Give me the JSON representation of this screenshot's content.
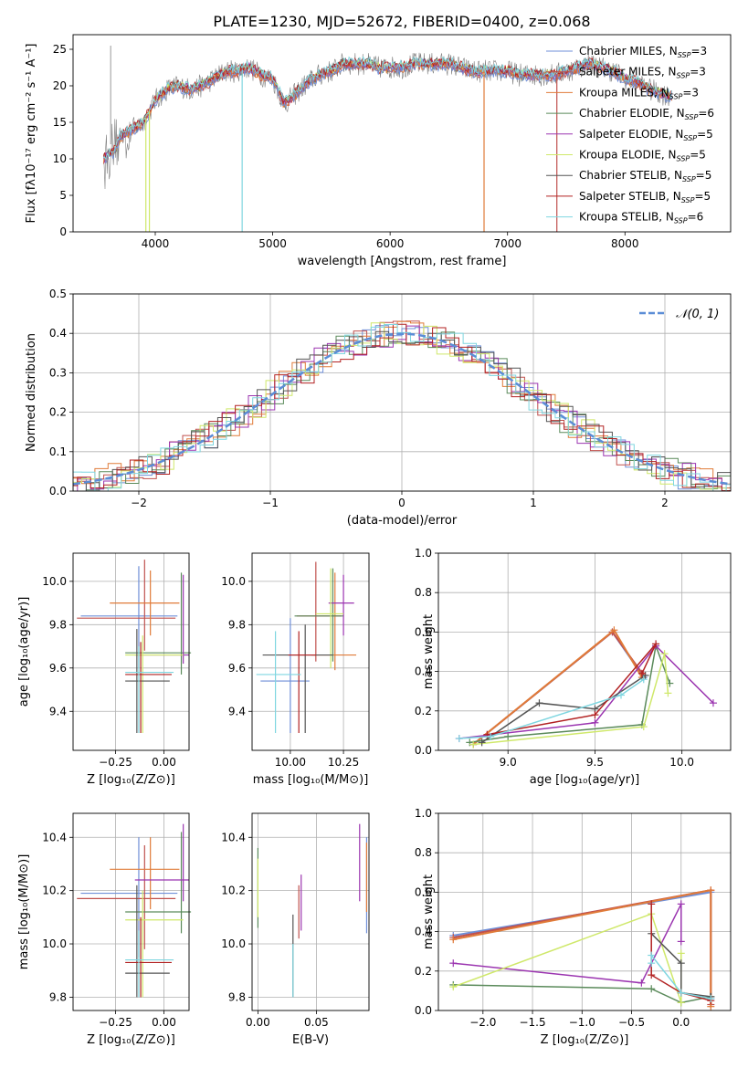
{
  "figure": {
    "title": "PLATE=1230, MJD=52672, FIBERID=0400, z=0.068"
  },
  "series_colors": [
    "#6f8fd8",
    "#c0504d",
    "#e07b39",
    "#5a8a5a",
    "#9b35b0",
    "#cfe86a",
    "#555555",
    "#b22222",
    "#7fd6e0"
  ],
  "chart_data": [
    {
      "id": "spectrum",
      "type": "line",
      "title": "PLATE=1230, MJD=52672, FIBERID=0400, z=0.068",
      "xlabel": "wavelength [Angstrom, rest frame]",
      "ylabel": "Flux [fλ10⁻¹⁷ erg cm⁻² s⁻¹ A⁻¹]",
      "xlim": [
        3300,
        8900
      ],
      "ylim": [
        0,
        27
      ],
      "xticks": [
        4000,
        5000,
        6000,
        7000,
        8000
      ],
      "yticks": [
        0,
        5,
        10,
        15,
        20,
        25
      ],
      "legend_placement": "right",
      "legend": [
        "Chabrier MILES, N_SSP=3",
        "Salpeter MILES, N_SSP=3",
        "Kroupa MILES, N_SSP=3",
        "Chabrier ELODIE, N_SSP=6",
        "Salpeter ELODIE, N_SSP=5",
        "Kroupa ELODIE, N_SSP=5",
        "Chabrier STELIB, N_SSP=5",
        "Salpeter STELIB, N_SSP=5",
        "Kroupa STELIB, N_SSP=6"
      ],
      "continuum_x": [
        3560,
        3650,
        3700,
        3800,
        3900,
        4000,
        4100,
        4200,
        4300,
        4400,
        4500,
        4600,
        4700,
        4800,
        4900,
        5000,
        5100,
        5200,
        5300,
        5400,
        5500,
        5600,
        5700,
        5800,
        5900,
        6000,
        6100,
        6200,
        6300,
        6400,
        6500,
        6600,
        6700,
        6800,
        6900,
        7000,
        7100,
        7200,
        7300,
        7400,
        7500,
        7600,
        7700,
        7800,
        7900,
        8000,
        8100,
        8200,
        8300,
        8400
      ],
      "continuum_y": [
        10,
        11,
        13,
        14,
        15,
        18,
        19.5,
        20,
        19.5,
        20,
        21,
        22,
        22,
        22.5,
        21.5,
        21,
        17.5,
        19,
        20.5,
        21.5,
        22,
        23,
        23,
        23,
        22.5,
        22.5,
        22.5,
        23,
        23,
        23,
        23,
        22.5,
        22,
        22,
        22,
        22,
        21.5,
        21.5,
        21.5,
        21.5,
        22,
        22.5,
        23,
        22.5,
        22,
        21,
        20.5,
        19.5,
        19,
        18.5
      ]
    },
    {
      "id": "residuals",
      "type": "area",
      "xlabel": "(data-model)/error",
      "ylabel": "Normed distribution",
      "xlim": [
        -2.5,
        2.5
      ],
      "ylim": [
        0,
        0.5
      ],
      "xticks": [
        -2,
        -1,
        0,
        1,
        2
      ],
      "yticks": [
        0.0,
        0.1,
        0.2,
        0.3,
        0.4,
        0.5
      ],
      "legend": [
        "𝒩(0, 1)"
      ],
      "legend_placement": "top-right",
      "grid": true
    },
    {
      "id": "z-age",
      "type": "scatter",
      "xlabel": "Z [log₁₀(Z/Z⊙)]",
      "ylabel": "age  [log₁₀(age/yr)]",
      "xlim": [
        -0.47,
        0.13
      ],
      "ylim": [
        9.22,
        10.13
      ],
      "xticks": [
        -0.25,
        0.0
      ],
      "yticks": [
        9.4,
        9.6,
        9.8,
        10.0
      ],
      "points": [
        {
          "x": -0.4,
          "y": 9.84,
          "ex": [
            -0.42,
            -0.08
          ],
          "ey": [
            9.3,
            10.0
          ]
        },
        {
          "x": -0.25,
          "y": 9.9,
          "ex": [
            -0.3,
            -0.05
          ],
          "ey": [
            9.6,
            10.05
          ]
        },
        {
          "x": -0.1,
          "y": 9.66,
          "ex": [
            -0.2,
            0.08
          ],
          "ey": [
            9.3,
            10.05
          ]
        },
        {
          "x": -0.1,
          "y": 9.57,
          "ex": [
            -0.2,
            0.02
          ],
          "ey": [
            9.3,
            9.75
          ]
        },
        {
          "x": -0.13,
          "y": 9.54,
          "ex": [
            -0.25,
            0.04
          ],
          "ey": [
            9.3,
            9.8
          ]
        }
      ]
    },
    {
      "id": "mass-age",
      "type": "scatter",
      "xlabel": "mass [log₁₀(M/M⊙)]",
      "ylabel": "",
      "xlim": [
        9.82,
        10.37
      ],
      "ylim": [
        9.22,
        10.13
      ],
      "xticks": [
        10.0,
        10.25
      ],
      "yticks": [
        9.4,
        9.6,
        9.8,
        10.0
      ]
    },
    {
      "id": "weights-age",
      "type": "line",
      "xlabel": "age  [log₁₀(age/yr)]",
      "ylabel": "mass weight",
      "xlim": [
        8.6,
        10.28
      ],
      "ylim": [
        0,
        1.0
      ],
      "xticks": [
        9.0,
        9.5,
        10.0
      ],
      "yticks": [
        0.0,
        0.2,
        0.4,
        0.6,
        0.8,
        1.0
      ],
      "grid": true
    },
    {
      "id": "z-mass",
      "type": "scatter",
      "xlabel": "Z [log₁₀(Z/Z⊙)]",
      "ylabel": "mass [log₁₀(M/M⊙)]",
      "xlim": [
        -0.47,
        0.13
      ],
      "ylim": [
        9.75,
        10.49
      ],
      "xticks": [
        -0.25,
        0.0
      ],
      "yticks": [
        9.8,
        10.0,
        10.2,
        10.4
      ]
    },
    {
      "id": "ebv-mass",
      "type": "scatter",
      "xlabel": "E(B-V)",
      "ylabel": "",
      "xlim": [
        -0.005,
        0.095
      ],
      "ylim": [
        9.75,
        10.49
      ],
      "xticks": [
        0.0,
        0.05
      ],
      "yticks": [
        9.8,
        10.0,
        10.2,
        10.4
      ]
    },
    {
      "id": "weights-z",
      "type": "line",
      "xlabel": "Z [log₁₀(Z/Z⊙)]",
      "ylabel": "mass weight",
      "xlim": [
        -2.45,
        0.5
      ],
      "ylim": [
        0,
        1.0
      ],
      "xticks": [
        -2.0,
        -1.5,
        -1.0,
        -0.5,
        0.0
      ],
      "yticks": [
        0.0,
        0.2,
        0.4,
        0.6,
        0.8,
        1.0
      ],
      "grid": true
    }
  ]
}
